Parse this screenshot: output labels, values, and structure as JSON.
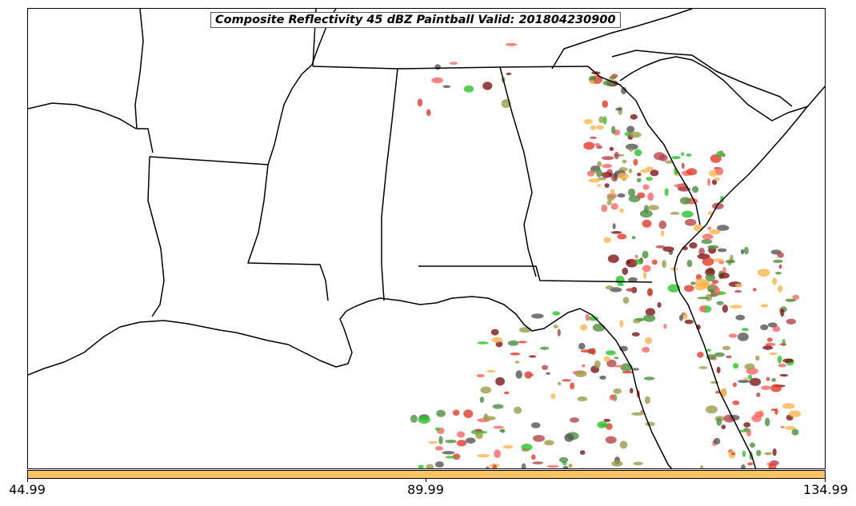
{
  "title": "Composite Reflectivity 45 dBZ Paintball Valid: 201804230900",
  "colorbar": {
    "color": "#fcc466",
    "ticks": [
      "44.99",
      "89.99",
      "134.99"
    ]
  },
  "colors": {
    "land_lines": "#000000",
    "paintball_palette": [
      "#fcb54d",
      "#e23a2a",
      "#2bc22b",
      "#7c1515",
      "#9c9b4a",
      "#4e8e3e",
      "#b5454a",
      "#555555",
      "#ff6666"
    ]
  }
}
